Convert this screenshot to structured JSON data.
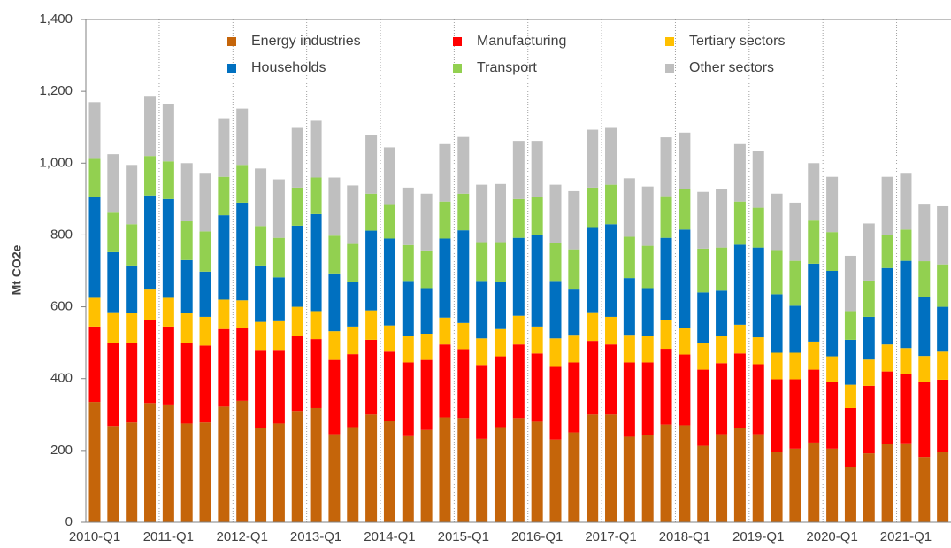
{
  "chart_data": {
    "type": "stacked_bar",
    "y_label": "Mt CO2e",
    "categories": [
      "2010-Q1",
      null,
      null,
      null,
      "2011-Q1",
      null,
      null,
      null,
      "2012-Q1",
      null,
      null,
      null,
      "2013-Q1",
      null,
      null,
      null,
      "2014-Q1",
      null,
      null,
      null,
      "2015-Q1",
      null,
      null,
      null,
      "2016-Q1",
      null,
      null,
      null,
      "2017-Q1",
      null,
      null,
      null,
      "2018-Q1",
      null,
      null,
      null,
      "2019-Q1",
      null,
      null,
      null,
      "2020-Q1",
      null,
      null,
      null,
      "2021-Q1",
      null,
      null
    ],
    "series": [
      {
        "name": "Energy industries",
        "color": "#c5650a",
        "values": [
          335,
          268,
          278,
          332,
          328,
          275,
          278,
          322,
          338,
          262,
          275,
          310,
          318,
          245,
          265,
          300,
          282,
          242,
          257,
          292,
          290,
          232,
          265,
          290,
          280,
          230,
          250,
          300,
          300,
          238,
          244,
          272,
          270,
          213,
          245,
          263,
          245,
          195,
          205,
          222,
          205,
          155,
          192,
          218,
          220,
          182,
          195
        ]
      },
      {
        "name": "Manufacturing",
        "color": "#ff0000",
        "values": [
          210,
          232,
          220,
          230,
          217,
          225,
          214,
          216,
          202,
          218,
          205,
          208,
          192,
          207,
          203,
          208,
          193,
          203,
          195,
          203,
          192,
          206,
          197,
          205,
          190,
          205,
          195,
          205,
          195,
          207,
          201,
          211,
          197,
          212,
          198,
          207,
          195,
          203,
          193,
          203,
          185,
          163,
          188,
          202,
          192,
          208,
          202
        ]
      },
      {
        "name": "Tertiary sectors",
        "color": "#ffc000",
        "values": [
          80,
          85,
          84,
          86,
          80,
          82,
          80,
          82,
          78,
          78,
          80,
          82,
          78,
          80,
          77,
          82,
          73,
          73,
          73,
          75,
          73,
          74,
          76,
          80,
          75,
          77,
          77,
          80,
          77,
          77,
          75,
          80,
          75,
          73,
          75,
          80,
          75,
          74,
          74,
          78,
          72,
          65,
          73,
          75,
          73,
          73,
          78
        ]
      },
      {
        "name": "Households",
        "color": "#0070c0",
        "values": [
          280,
          167,
          133,
          262,
          275,
          148,
          126,
          235,
          272,
          157,
          122,
          226,
          270,
          161,
          125,
          222,
          242,
          154,
          127,
          220,
          258,
          160,
          132,
          217,
          255,
          160,
          126,
          237,
          258,
          158,
          132,
          229,
          273,
          142,
          127,
          223,
          250,
          163,
          131,
          217,
          238,
          125,
          119,
          213,
          243,
          165,
          125
        ]
      },
      {
        "name": "Transport",
        "color": "#92d050",
        "values": [
          107,
          110,
          115,
          110,
          105,
          108,
          112,
          107,
          105,
          110,
          110,
          106,
          102,
          105,
          105,
          103,
          96,
          100,
          105,
          103,
          102,
          108,
          110,
          108,
          105,
          106,
          112,
          110,
          110,
          115,
          118,
          116,
          113,
          122,
          120,
          120,
          111,
          123,
          125,
          120,
          108,
          80,
          101,
          92,
          87,
          99,
          118
        ]
      },
      {
        "name": "Other sectors",
        "color": "#bfbfbf",
        "values": [
          158,
          163,
          165,
          165,
          160,
          162,
          163,
          163,
          157,
          160,
          163,
          166,
          158,
          162,
          163,
          163,
          158,
          160,
          158,
          160,
          158,
          160,
          162,
          162,
          157,
          162,
          162,
          161,
          158,
          163,
          165,
          164,
          157,
          158,
          163,
          160,
          157,
          157,
          162,
          160,
          154,
          154,
          159,
          162,
          158,
          160,
          162
        ]
      }
    ],
    "ylim": [
      0,
      1400
    ],
    "yticks": [
      0,
      200,
      400,
      600,
      800,
      {
        "value": 1000,
        "label": "1,000"
      },
      {
        "value": 1200,
        "label": "1,200"
      },
      {
        "value": 1400,
        "label": "1,400"
      }
    ],
    "legend": "top"
  }
}
